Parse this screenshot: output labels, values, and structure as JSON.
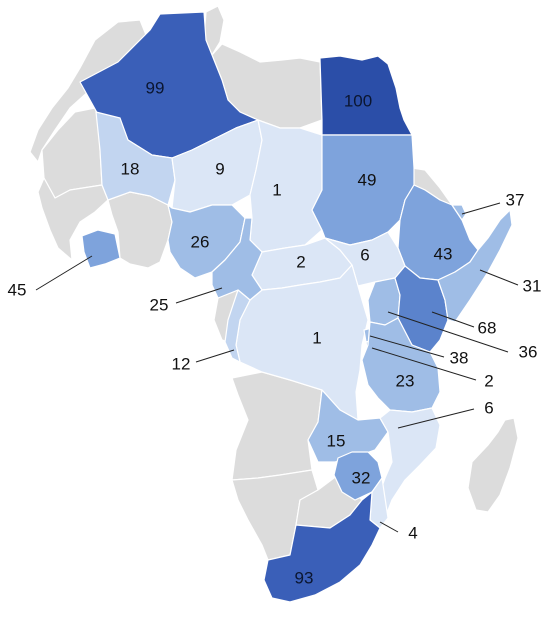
{
  "map": {
    "colors": {
      "no_data": "#dcdcdc",
      "scale": [
        "#dbe6f6",
        "#c2d5f0",
        "#9fbde6",
        "#7ea3dc",
        "#5b83cc",
        "#3a5fb8",
        "#2b4ea8"
      ]
    },
    "regions": [
      {
        "id": "algeria",
        "value": "99"
      },
      {
        "id": "egypt",
        "value": "100"
      },
      {
        "id": "mali",
        "value": "18"
      },
      {
        "id": "niger",
        "value": "9"
      },
      {
        "id": "chad",
        "value": "1"
      },
      {
        "id": "sudan",
        "value": "49"
      },
      {
        "id": "ethiopia",
        "value": "43"
      },
      {
        "id": "nigeria",
        "value": "26"
      },
      {
        "id": "car",
        "value": "2"
      },
      {
        "id": "south-sudan",
        "value": "6"
      },
      {
        "id": "drc",
        "value": "1"
      },
      {
        "id": "tanzania",
        "value": "23"
      },
      {
        "id": "zambia",
        "value": "15"
      },
      {
        "id": "zimbabwe",
        "value": "32"
      },
      {
        "id": "south-africa",
        "value": "93"
      },
      {
        "id": "djibouti",
        "value": "37"
      },
      {
        "id": "somalia",
        "value": "31"
      },
      {
        "id": "ivory-coast",
        "value": "45"
      },
      {
        "id": "cameroon",
        "value": "25"
      },
      {
        "id": "gabon-congo",
        "value": "12"
      },
      {
        "id": "kenya",
        "value": "68"
      },
      {
        "id": "uganda",
        "value": "36"
      },
      {
        "id": "rwanda",
        "value": "38"
      },
      {
        "id": "burundi",
        "value": "2"
      },
      {
        "id": "malawi-mozambique",
        "value": "6"
      },
      {
        "id": "mozambique-south",
        "value": "4"
      }
    ]
  }
}
